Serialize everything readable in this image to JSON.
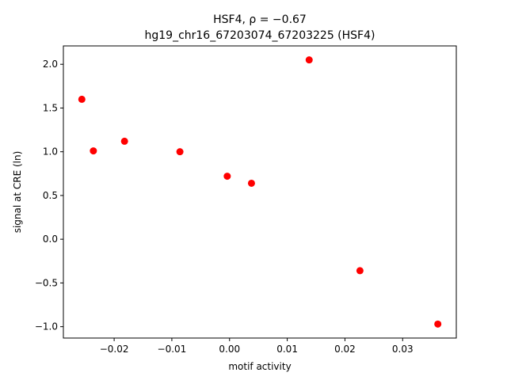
{
  "chart_data": {
    "type": "scatter",
    "title_line1": "HSF4, ρ = −0.67",
    "title_line2": "hg19_chr16_67203074_67203225 (HSF4)",
    "xlabel": "motif activity",
    "ylabel": "signal at CRE (ln)",
    "xlim": [
      -0.0288,
      0.0393
    ],
    "ylim": [
      -1.13,
      2.21
    ],
    "x_ticks": [
      -0.02,
      -0.01,
      0.0,
      0.01,
      0.02,
      0.03
    ],
    "x_tick_labels": [
      "−0.02",
      "−0.01",
      "0.00",
      "0.01",
      "0.02",
      "0.03"
    ],
    "y_ticks": [
      -1.0,
      -0.5,
      0.0,
      0.5,
      1.0,
      1.5,
      2.0
    ],
    "y_tick_labels": [
      "−1.0",
      "−0.5",
      "0.0",
      "0.5",
      "1.0",
      "1.5",
      "2.0"
    ],
    "marker_color": "#ff0000",
    "points": [
      {
        "x": -0.0256,
        "y": 1.6
      },
      {
        "x": -0.0236,
        "y": 1.01
      },
      {
        "x": -0.0182,
        "y": 1.12
      },
      {
        "x": -0.0086,
        "y": 1.0
      },
      {
        "x": -0.0004,
        "y": 0.72
      },
      {
        "x": 0.0038,
        "y": 0.64
      },
      {
        "x": 0.0138,
        "y": 2.05
      },
      {
        "x": 0.0226,
        "y": -0.36
      },
      {
        "x": 0.0361,
        "y": -0.97
      }
    ],
    "grid": false,
    "legend": "none"
  }
}
